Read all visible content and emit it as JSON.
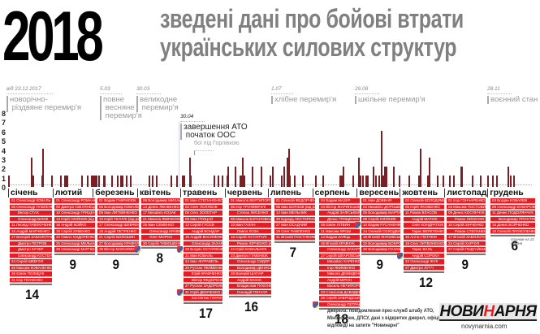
{
  "header": {
    "year": "2018",
    "title_line1": "зведені дані про бойові втрати",
    "title_line2": "українських силових структур"
  },
  "events": [
    {
      "date": "від 23.12.2017",
      "label": "новорічно-\n різдвяне перемир'я"
    },
    {
      "date": "5.03",
      "label": "повне\n весняне\n перемир'я"
    },
    {
      "date": "30.03",
      "label": "великодне\n перемир'я"
    },
    {
      "date": "30.04",
      "label": "завершення АТО\n початок ООС"
    },
    {
      "date": "",
      "label": "бої під Горлівкою"
    },
    {
      "date": "1.07",
      "label": "хлібне перемир'я"
    },
    {
      "date": "29.08",
      "label": "шкільне перемир'я"
    },
    {
      "date": "28.11",
      "label": "воєнний стан"
    }
  ],
  "chart_data": {
    "type": "bar",
    "title": "2018 зведені дані про бойові втрати українських силових структур",
    "xlabel": "",
    "ylabel": "",
    "ylim": [
      0,
      8
    ],
    "yticks": [
      "0",
      "1",
      "2",
      "3",
      "4",
      "5",
      "6",
      "7",
      "8"
    ],
    "categories": [
      "січень",
      "лютий",
      "березень",
      "квітень",
      "травень",
      "червень",
      "липень",
      "серпень",
      "вересень",
      "жовтень",
      "листопад",
      "грудень"
    ],
    "monthly_totals": [
      14,
      9,
      9,
      8,
      17,
      16,
      7,
      18,
      9,
      12,
      9,
      6
    ],
    "daily_bars": [
      {
        "x": 1,
        "v": 1
      },
      {
        "x": 17,
        "v": 3
      },
      {
        "x": 18,
        "v": 1
      },
      {
        "x": 24,
        "v": 1
      },
      {
        "x": 25,
        "v": 4
      },
      {
        "x": 31,
        "v": 1
      },
      {
        "x": 37,
        "v": 1
      },
      {
        "x": 40,
        "v": 1
      },
      {
        "x": 41,
        "v": 1
      },
      {
        "x": 42,
        "v": 1
      },
      {
        "x": 52,
        "v": 1
      },
      {
        "x": 56,
        "v": 1
      },
      {
        "x": 59,
        "v": 1
      },
      {
        "x": 60,
        "v": 1
      },
      {
        "x": 61,
        "v": 1
      },
      {
        "x": 62,
        "v": 1
      },
      {
        "x": 64,
        "v": 1
      },
      {
        "x": 67,
        "v": 1
      },
      {
        "x": 68,
        "v": 1
      },
      {
        "x": 73,
        "v": 1
      },
      {
        "x": 77,
        "v": 1
      },
      {
        "x": 79,
        "v": 1
      },
      {
        "x": 80,
        "v": 1
      },
      {
        "x": 83,
        "v": 1
      },
      {
        "x": 86,
        "v": 1
      },
      {
        "x": 99,
        "v": 1
      },
      {
        "x": 101,
        "v": 1
      },
      {
        "x": 104,
        "v": 1
      },
      {
        "x": 114,
        "v": 1
      },
      {
        "x": 118,
        "v": 1
      },
      {
        "x": 122,
        "v": 1
      },
      {
        "x": 123,
        "v": 1
      },
      {
        "x": 127,
        "v": 3
      },
      {
        "x": 128,
        "v": 1
      },
      {
        "x": 144,
        "v": 1
      },
      {
        "x": 147,
        "v": 1
      },
      {
        "x": 150,
        "v": 1
      },
      {
        "x": 153,
        "v": 1
      },
      {
        "x": 154,
        "v": 2
      },
      {
        "x": 159,
        "v": 2
      },
      {
        "x": 162,
        "v": 1
      },
      {
        "x": 163,
        "v": 1
      },
      {
        "x": 164,
        "v": 3
      },
      {
        "x": 165,
        "v": 1
      },
      {
        "x": 171,
        "v": 2
      },
      {
        "x": 177,
        "v": 2
      },
      {
        "x": 183,
        "v": 1
      },
      {
        "x": 185,
        "v": 2
      },
      {
        "x": 193,
        "v": 2
      },
      {
        "x": 195,
        "v": 3
      },
      {
        "x": 196,
        "v": 4
      },
      {
        "x": 197,
        "v": 1
      },
      {
        "x": 185,
        "v": 1
      },
      {
        "x": 191,
        "v": 1
      },
      {
        "x": 200,
        "v": 1
      },
      {
        "x": 206,
        "v": 1
      },
      {
        "x": 215,
        "v": 1
      },
      {
        "x": 232,
        "v": 1
      },
      {
        "x": 233,
        "v": 1
      },
      {
        "x": 234,
        "v": 2
      },
      {
        "x": 220,
        "v": 1
      },
      {
        "x": 241,
        "v": 1
      },
      {
        "x": 245,
        "v": 3
      },
      {
        "x": 246,
        "v": 1
      },
      {
        "x": 250,
        "v": 1
      },
      {
        "x": 251,
        "v": 1
      },
      {
        "x": 255,
        "v": 2
      },
      {
        "x": 261,
        "v": 6
      },
      {
        "x": 262,
        "v": 1
      },
      {
        "x": 264,
        "v": 2
      },
      {
        "x": 248,
        "v": 1
      },
      {
        "x": 245,
        "v": 1
      },
      {
        "x": 250,
        "v": 1
      },
      {
        "x": 257,
        "v": 1
      },
      {
        "x": 259,
        "v": 1
      },
      {
        "x": 263,
        "v": 2
      },
      {
        "x": 269,
        "v": 2
      },
      {
        "x": 273,
        "v": 1
      },
      {
        "x": 280,
        "v": 1
      },
      {
        "x": 287,
        "v": 1
      },
      {
        "x": 288,
        "v": 4
      },
      {
        "x": 293,
        "v": 1
      },
      {
        "x": 294,
        "v": 3
      },
      {
        "x": 300,
        "v": 1
      },
      {
        "x": 304,
        "v": 1
      },
      {
        "x": 308,
        "v": 1
      },
      {
        "x": 311,
        "v": 1
      },
      {
        "x": 316,
        "v": 2
      },
      {
        "x": 317,
        "v": 2
      },
      {
        "x": 324,
        "v": 1
      },
      {
        "x": 330,
        "v": 1
      },
      {
        "x": 335,
        "v": 1
      },
      {
        "x": 338,
        "v": 1
      },
      {
        "x": 341,
        "v": 1
      },
      {
        "x": 349,
        "v": 2
      },
      {
        "x": 351,
        "v": 1
      },
      {
        "x": 353,
        "v": 1
      }
    ]
  },
  "months": [
    {
      "label": "січень",
      "total": "14",
      "names": [
        "01 Олександр КОВАЛЬ",
        "05 Олександр ПАВЛЕНКО",
        "Віктор СТАХ",
        "Олександр БІЛИК",
        "11 Леонід ПАВЛЮЧЕНКО",
        "15 Андрій МАРЧЕНКО",
        "17 Валерій ЗАБОЛОТНИЙ (від ран)",
        "Дмитро ПЕТРОВ",
        "Дмитро КУЧЕР",
        "Олександр КОСТЕНКО",
        "24 Сергій ШЕВЧУК",
        "25 Максим КОВАЛЕНКО",
        "26 Євген ПОЛІЩУК",
        "31 Ігор ТКАЧЕНКО"
      ]
    },
    {
      "label": "лютий",
      "total": "9",
      "names": [
        "01 Олександр РОМАНЕНКО (від ран)",
        "06 Дмитро СМІЛЯНЕЦЬ",
        "10 Олександр ГРИЦЕНКО",
        "13 Юрій ОЛІЙНИК (від ран)",
        "16 Андрій БОЙКО",
        "19 Сергій ЗУБЕНКО",
        "22 Павло СИДОРЕНКО",
        "25 Олександр МЕЛЬНИК",
        "28 Олександр МАРЧЕНКО"
      ]
    },
    {
      "label": "березень",
      "total": "9",
      "names": [
        "01 Вадим ГАВРИЛЮК",
        "06 Володимир КОВАЛЕНКО",
        "09 Іван ЛИТВИНЕНКО",
        "10 Юрій ТКАЧУК (від ран)",
        "17 Олександр ШЕВЧЕНКО",
        "19 Андрій ПЕТРЕНКО",
        "21 Сергій ВОЛОШИН",
        "27 Володимир КРАВЧУК",
        "29 Віктор МАКСИМОВ"
      ]
    },
    {
      "label": "квітень",
      "total": "8",
      "names": [
        "09 Володимир МИХАЙЛЕНКО",
        "13 Денис ЯКОВЕНКО",
        "17 Михайло КОЗАК",
        "21 Микола ЛЕВЧЕНКО",
        "25 Іван СЕМЕНКО",
        "Олександр КРАВЕЦЬ (від ран)",
        "Олег МОРОЗ",
        "30 Сергій ТИМОШЕНКО"
      ]
    },
    {
      "label": "травень",
      "total": "17",
      "names": [
        "01 Іван СТЕПАНЕНКО",
        "02 Олег ПОЛЯКОВ",
        "05 Олег ЗОЛОТАР",
        "09 Іван ГРИЦАЙ",
        "12 Сергій ГУСЄВ",
        "Андрій БОНДАР",
        "15 Андрій ВАСИЛЕНКО",
        "Олександр ЗАХАРЧУК",
        "20 Богдан ОСТАПЕНКО",
        "21 Іван КОВАЛЬ",
        "24 Іван ЖУРАВЕЛЬ",
        "25 Руслан ЯКИМЕНКО",
        "Юрій КРАВЧЕНКО",
        "Віктор ФЕДОРЕНКО",
        "27 Руслан ЗАДОРОЖНИЙ (від ран)",
        "31 Юрій ДЕМЧЕНКО (від ран)",
        "Костянтин ГОНЧАР (від ран)"
      ]
    },
    {
      "label": "червень",
      "total": "16",
      "names": [
        "01 Микола ВЕРТИПОРОХ (від ран)",
        "05 Ігор ТРОФИМЧУК",
        "Степан ЛИСЕНКО",
        "08 Микола БАРАНОВСЬКИЙ",
        "10 Іван ГАЛАН",
        "Павло ЛОЗА",
        "16 Сергій ОСТАПЧУК",
        "Роман ЮРЧЕНКО (від ран)",
        "22 Юрій КОВАЛЬЧУК",
        "23 Дмитро ГУМЕНЮК",
        "Олександр СИДОР",
        "Володимир ДЕНИСЕНКО",
        "28 Валерій ШАПАР",
        "Андрій КОЗАК",
        "Владислав ТИХОНЕНКО",
        "Геннадій ГОНЧАР"
      ]
    },
    {
      "label": "липень",
      "total": "7",
      "names": [
        "01 Олексій ФЕДОРЧЕНКО (від ран)",
        "06 Іван БОРЗОВ (від ран)",
        "12 Іван МЕЛЬНИК",
        "20 Едуард НЕСТЕРЕНКО",
        "27 Іван ОСАДЧИЙ",
        "29 Олег ПАВЛЕНКО",
        "31 Віталій ПОСТНІКОВ"
      ]
    },
    {
      "label": "серпень",
      "total": "18",
      "names": [
        "04 Вадим МАЗУР",
        "04 Віктор ЖАРИНСЬКИЙ",
        "Андрій ЗАЛІСЬКИЙ",
        "Денис ГРИЩЕНКО",
        "08 Євген ЛІТВИН",
        "11 Максим ЯРОШ",
        "14 Вадим ЗАЯЦЬ",
        "16 Віталій КРАВЧУК",
        "Олександр ЗАХАРЧЕНКО",
        "17 Сергій ШКАРОВСЬКИЙ",
        "Михайло ХАРЕНКО",
        "Ігор ЯКИМЕНКО",
        "Микола ДЕМИДЕНКО",
        "Андрій МІРОН",
        "Василь НЕЧИПОРУК",
        "23 Станіслав ДАВИДЕНКО",
        "26 Сергій ЗАБРОДСЬКИЙ",
        "Олександр ПЕТРАШКЕВИЧ"
      ]
    },
    {
      "label": "вересень",
      "total": "9",
      "names": [
        "01 Іван ДОВБНЯ",
        "03 Михайло ДОРОШЕНКО",
        "05 Володимир МАРТИН",
        "08 Сергій ОЛІЙНИК",
        "10 Вадим РУСАНЕНКО (від ран)",
        "14 Олексій СОЛОДКИЙ",
        "18 Віталій ЖУКОВСЬКИЙ",
        "22 Володимир БОБРОВ",
        "28 Володимир ПАЛАМАРЧУК"
      ]
    },
    {
      "label": "жовтень",
      "total": "12",
      "names": [
        "02 Олексій ВОЛОДИМИРОВ",
        "05 Юрій ЯКОВЕНКО",
        "11 Роман ВЛАСОВ",
        "Андрій МАТЮК",
        "Олег КОНДРАТЮК",
        "Тарас ВЕРЕТЕНКО",
        "16 Антон ПЕТЛЮК",
        "19 Олег ЛИТВИНЕНКО (від ран)",
        "Тарас ВАЛЬ",
        "Андрій СОРОКА",
        "22 Олександр ЖУК",
        "27 Дмитро ЛУТЧ"
      ]
    },
    {
      "label": "листопад",
      "total": "9",
      "names": [
        "01 Ігор ГОНЧАРЕНКО",
        "03 Максим ПОСТОВИЙ",
        "09 Денис КОСЯНЧУК",
        "Роман ЛИСЕНКО",
        "10 Сергій ЗІНЧЕНКО",
        "Роман СТЕПАНЕНКО",
        "17 Віталій ЗАБОЛОТНИЙ",
        "24 Сергій ХАРЧУК",
        "27 Сергій ПОДГАЙНИЙ"
      ]
    },
    {
      "label": "грудень",
      "total": "6",
      "names": [
        "03 Богдан КОВАЛЕВ",
        "09 Олександр КОМАРОВСЬКИЙ",
        "11 Денис ПОДОЛЯНЧУК",
        "Володимир ПРОСТЯКОВ",
        "15 Денис БОЙЧЕНКО",
        "18 Олексій ПРОКОПЕНКО (від ран)"
      ]
    }
  ],
  "december_note": "станом на 21 грудня",
  "footer": {
    "sources": "джерела: повідомлення прес-служб штабу АТО, Міноборони, ДПСУ, дані з відкритих джерел, офіційні відповіді на запити \"Новинарні\"",
    "logo_part1": "НОВИ",
    "logo_part2": "Н",
    "logo_part3": "АРНЯ",
    "site": "novynarnia.com"
  },
  "colors": {
    "bar": "#7a1f24",
    "name_bg": "#e31e24",
    "title_gray": "#808080"
  }
}
